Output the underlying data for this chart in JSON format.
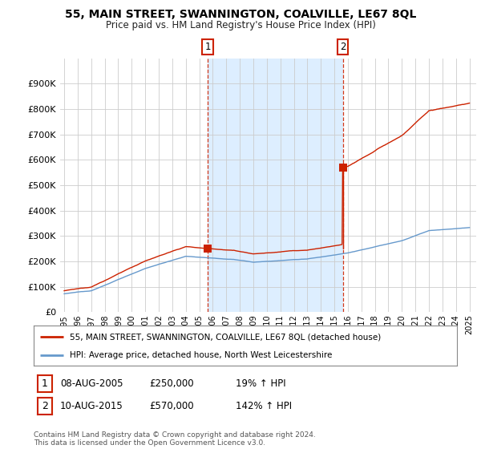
{
  "title": "55, MAIN STREET, SWANNINGTON, COALVILLE, LE67 8QL",
  "subtitle": "Price paid vs. HM Land Registry's House Price Index (HPI)",
  "legend_line1": "55, MAIN STREET, SWANNINGTON, COALVILLE, LE67 8QL (detached house)",
  "legend_line2": "HPI: Average price, detached house, North West Leicestershire",
  "annotation1_date": "08-AUG-2005",
  "annotation1_price": "£250,000",
  "annotation1_hpi": "19% ↑ HPI",
  "annotation1_year": 2005.62,
  "annotation1_value": 250000,
  "annotation2_date": "10-AUG-2015",
  "annotation2_price": "£570,000",
  "annotation2_hpi": "142% ↑ HPI",
  "annotation2_year": 2015.62,
  "annotation2_value": 570000,
  "footer": "Contains HM Land Registry data © Crown copyright and database right 2024.\nThis data is licensed under the Open Government Licence v3.0.",
  "hpi_color": "#6699cc",
  "shade_color": "#ddeeff",
  "price_color": "#cc2200",
  "annotation_color": "#cc2200",
  "bg_color": "#ffffff",
  "grid_color": "#cccccc",
  "ylim": [
    0,
    1000000
  ],
  "yticks": [
    0,
    100000,
    200000,
    300000,
    400000,
    500000,
    600000,
    700000,
    800000,
    900000
  ],
  "ytick_labels": [
    "£0",
    "£100K",
    "£200K",
    "£300K",
    "£400K",
    "£500K",
    "£600K",
    "£700K",
    "£800K",
    "£900K"
  ],
  "year_start": 1995,
  "year_end": 2025
}
